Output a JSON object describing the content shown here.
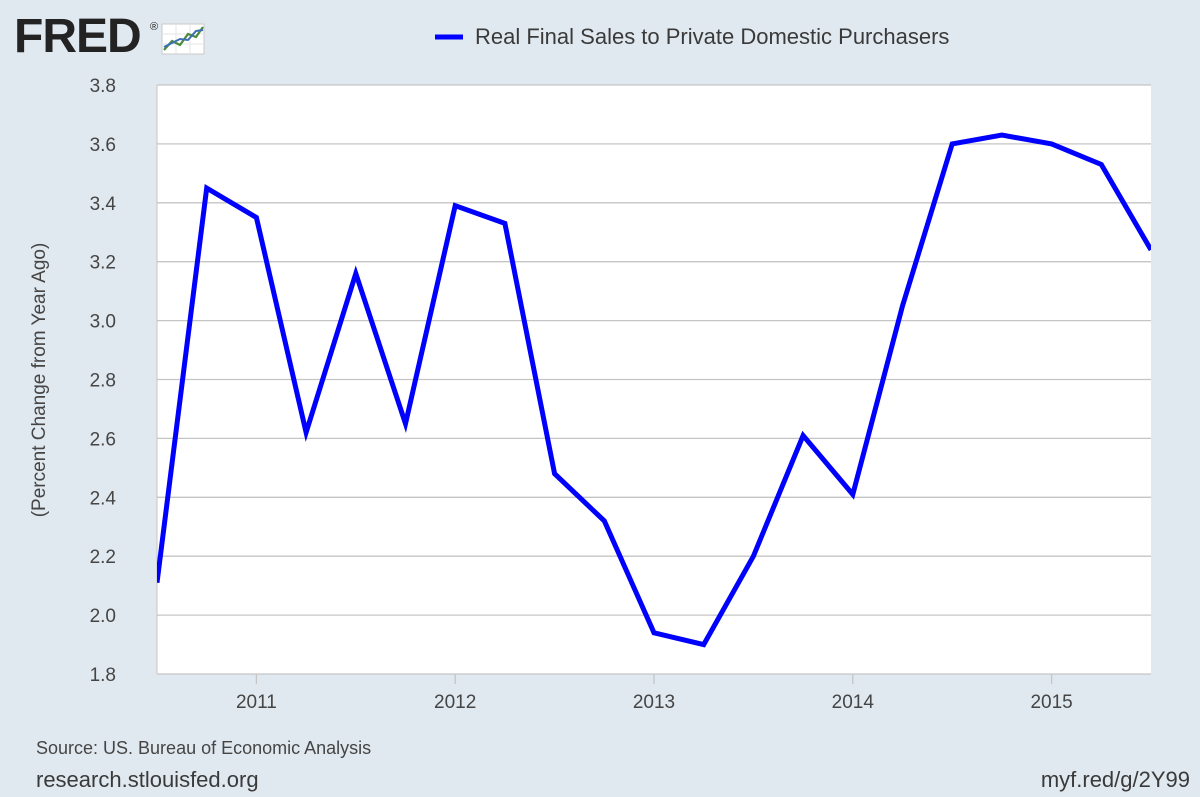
{
  "brand": {
    "name": "FRED",
    "registered": "®"
  },
  "chart_data": {
    "type": "line",
    "title": "",
    "xlabel": "",
    "ylabel": "(Percent Change from Year Ago)",
    "ylim": [
      1.8,
      3.8
    ],
    "yticks": [
      1.8,
      2.0,
      2.2,
      2.4,
      2.6,
      2.8,
      3.0,
      3.2,
      3.4,
      3.6,
      3.8
    ],
    "ytick_labels": [
      "1.8",
      "2.0",
      "2.2",
      "2.4",
      "2.6",
      "2.8",
      "3.0",
      "3.2",
      "3.4",
      "3.6",
      "3.8"
    ],
    "xlim": [
      2010.5,
      2015.5
    ],
    "xticks": [
      2011,
      2012,
      2013,
      2014,
      2015
    ],
    "xtick_labels": [
      "2011",
      "2012",
      "2013",
      "2014",
      "2015"
    ],
    "grid": true,
    "legend_position": "top",
    "series": [
      {
        "name": "Real Final Sales to Private Domestic Purchasers",
        "color": "#0000ff",
        "x": [
          2010.5,
          2010.75,
          2011.0,
          2011.25,
          2011.5,
          2011.75,
          2012.0,
          2012.25,
          2012.5,
          2012.75,
          2013.0,
          2013.25,
          2013.5,
          2013.75,
          2014.0,
          2014.25,
          2014.5,
          2014.75,
          2015.0,
          2015.25,
          2015.5
        ],
        "values": [
          2.11,
          3.45,
          3.35,
          2.62,
          3.16,
          2.65,
          3.39,
          3.33,
          2.48,
          2.32,
          1.94,
          1.9,
          2.2,
          2.61,
          2.41,
          3.05,
          3.6,
          3.63,
          3.6,
          3.53,
          3.24
        ]
      }
    ]
  },
  "footer": {
    "source": "Source: US. Bureau of Economic Analysis",
    "site": "research.stlouisfed.org",
    "link": "myf.red/g/2Y99"
  },
  "colors": {
    "background": "#e1e9f0",
    "plot_background": "#ffffff",
    "gridline": "#c5c5c5",
    "series": "#0000ff"
  }
}
